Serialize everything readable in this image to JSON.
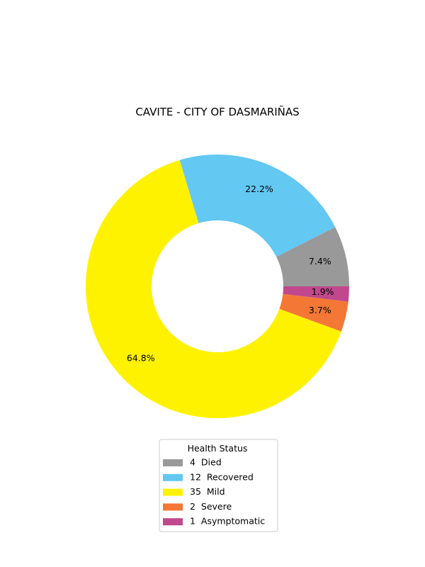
{
  "chart_data": {
    "type": "pie",
    "title": "CAVITE - CITY OF DASMARIÑAS",
    "legend_title": "Health Status",
    "legend_placement": "bottom-center",
    "donut": true,
    "slices": [
      {
        "label": "Died",
        "count": 4,
        "percent": "7.4%",
        "color": "#999999"
      },
      {
        "label": "Recovered",
        "count": 12,
        "percent": "22.2%",
        "color": "#63c8f2"
      },
      {
        "label": "Mild",
        "count": 35,
        "percent": "64.8%",
        "color": "#fff200"
      },
      {
        "label": "Severe",
        "count": 2,
        "percent": "3.7%",
        "color": "#f47735"
      },
      {
        "label": "Asymptomatic",
        "count": 1,
        "percent": "1.9%",
        "color": "#c1488d"
      }
    ],
    "legend_entries": [
      "4  Died",
      "12  Recovered",
      "35  Mild",
      "2  Severe",
      "1  Asymptomatic"
    ]
  }
}
